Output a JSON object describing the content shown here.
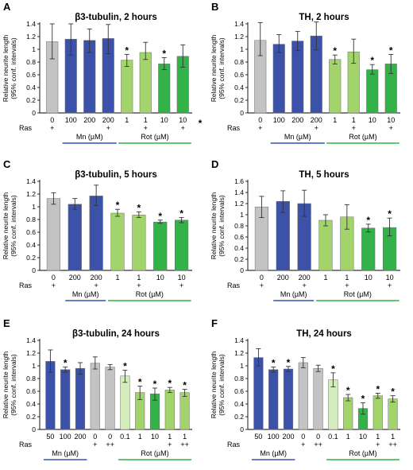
{
  "colors": {
    "control": "#c3c3c3",
    "mn": "#3c52a8",
    "rot_low": "#a3d46b",
    "rot_high": "#33b249",
    "rot_lowest": "#d5ecbc",
    "mn_line": "#3452b4",
    "rot_line": "#2fb34a"
  },
  "chart_data": [
    {
      "panel": "A",
      "type": "bar",
      "title": "β3-tubulin, 2 hours",
      "ylabel": "Relative neurite length\n(95% conf. intervals)",
      "ylim": [
        0,
        1.4
      ],
      "yticks": [
        "0",
        "0.2",
        "0.4",
        "0.6",
        "0.8",
        "1",
        "1.2",
        "1.4"
      ],
      "row_label": "Ras",
      "categories": [
        "0",
        "100",
        "200",
        "200",
        "1",
        "1",
        "10",
        "10"
      ],
      "ras": [
        "+",
        "",
        "",
        "+",
        "",
        "+",
        "",
        "+"
      ],
      "values": [
        1.12,
        1.16,
        1.14,
        1.17,
        0.83,
        0.95,
        0.77,
        0.89
      ],
      "err_low": [
        0.85,
        0.91,
        0.95,
        0.93,
        0.73,
        0.84,
        0.68,
        0.72
      ],
      "err_high": [
        1.4,
        1.4,
        1.32,
        1.39,
        0.92,
        1.11,
        0.87,
        1.07
      ],
      "fill": [
        "control",
        "mn",
        "mn",
        "mn",
        "rot_low",
        "rot_low",
        "rot_high",
        "rot_high"
      ],
      "significant": [
        false,
        false,
        false,
        false,
        true,
        false,
        true,
        false
      ],
      "groups": [
        {
          "label": "Mn  (µM)",
          "from": 1,
          "to": 3,
          "color": "mn_line"
        },
        {
          "label": "Rot (µM)",
          "from": 4,
          "to": 7,
          "color": "rot_line"
        }
      ],
      "stray_mark": "*"
    },
    {
      "panel": "B",
      "type": "bar",
      "title": "TH, 2 hours",
      "ylabel": "Relative neurite length\n(95% conf. intervals)",
      "ylim": [
        0,
        1.4
      ],
      "yticks": [
        "0",
        "0.2",
        "0.4",
        "0.6",
        "0.8",
        "1",
        "1.2",
        "1.4"
      ],
      "row_label": "Ras",
      "categories": [
        "0",
        "100",
        "200",
        "200",
        "1",
        "1",
        "10",
        "10"
      ],
      "ras": [
        "+",
        "",
        "",
        "+",
        "",
        "+",
        "",
        "+"
      ],
      "values": [
        1.14,
        1.08,
        1.13,
        1.21,
        0.84,
        0.96,
        0.68,
        0.77
      ],
      "err_low": [
        0.9,
        0.95,
        0.98,
        0.99,
        0.77,
        0.78,
        0.61,
        0.62
      ],
      "err_high": [
        1.42,
        1.23,
        1.28,
        1.43,
        0.91,
        1.16,
        0.76,
        0.92
      ],
      "fill": [
        "control",
        "mn",
        "mn",
        "mn",
        "rot_low",
        "rot_low",
        "rot_high",
        "rot_high"
      ],
      "significant": [
        false,
        false,
        false,
        false,
        true,
        false,
        true,
        true
      ],
      "groups": [
        {
          "label": "Mn  (µM)",
          "from": 1,
          "to": 3,
          "color": "mn_line"
        },
        {
          "label": "Rot (µM)",
          "from": 4,
          "to": 7,
          "color": "rot_line"
        }
      ]
    },
    {
      "panel": "C",
      "type": "bar",
      "title": "β3-tubulin, 5 hours",
      "ylabel": "Relative neurite length\n(95% conf. intervals)",
      "ylim": [
        0,
        1.4
      ],
      "yticks": [
        "0",
        "0.2",
        "0.4",
        "0.6",
        "0.8",
        "1",
        "1.2",
        "1.4"
      ],
      "row_label": "Ras",
      "categories": [
        "0",
        "200",
        "200",
        "1",
        "1",
        "10",
        "10"
      ],
      "ras": [
        "+",
        "",
        "+",
        "",
        "+",
        "",
        "+"
      ],
      "values": [
        1.13,
        1.04,
        1.17,
        0.9,
        0.87,
        0.76,
        0.79
      ],
      "err_low": [
        1.04,
        0.96,
        1.02,
        0.85,
        0.83,
        0.74,
        0.75
      ],
      "err_high": [
        1.22,
        1.13,
        1.34,
        0.96,
        0.92,
        0.79,
        0.83
      ],
      "fill": [
        "control",
        "mn",
        "mn",
        "rot_low",
        "rot_low",
        "rot_high",
        "rot_high"
      ],
      "significant": [
        false,
        false,
        false,
        true,
        true,
        true,
        true
      ],
      "groups": [
        {
          "label": "Mn (µM)",
          "from": 1,
          "to": 2,
          "color": "mn_line"
        },
        {
          "label": "Rot (µM)",
          "from": 3,
          "to": 6,
          "color": "rot_line"
        }
      ]
    },
    {
      "panel": "D",
      "type": "bar",
      "title": "TH, 5 hours",
      "ylabel": "Relative neurite length\n(95% conf. intervals)",
      "ylim": [
        0,
        1.6
      ],
      "yticks": [
        "0",
        "0.2",
        "0.4",
        "0.6",
        "0.8",
        "1",
        "1.2",
        "1.4",
        "1.6"
      ],
      "row_label": "Ras",
      "categories": [
        "0",
        "200",
        "200",
        "1",
        "1",
        "10",
        "10"
      ],
      "ras": [
        "+",
        "",
        "+",
        "",
        "+",
        "",
        "+"
      ],
      "values": [
        1.14,
        1.24,
        1.2,
        0.9,
        0.96,
        0.76,
        0.77
      ],
      "err_low": [
        0.95,
        1.04,
        0.97,
        0.8,
        0.74,
        0.69,
        0.62
      ],
      "err_high": [
        1.33,
        1.43,
        1.44,
        1.0,
        1.18,
        0.83,
        0.94
      ],
      "fill": [
        "control",
        "mn",
        "mn",
        "rot_low",
        "rot_low",
        "rot_high",
        "rot_high"
      ],
      "significant": [
        false,
        false,
        false,
        false,
        false,
        true,
        true
      ],
      "groups": [
        {
          "label": "Mn (µM)",
          "from": 1,
          "to": 2,
          "color": "mn_line"
        },
        {
          "label": "Rot (µM)",
          "from": 3,
          "to": 6,
          "color": "rot_line"
        }
      ]
    },
    {
      "panel": "E",
      "type": "bar",
      "title": "β3-tubulin, 24 hours",
      "ylabel": "Relative neurite length\n(95% conf. intervals)",
      "ylim": [
        0,
        1.4
      ],
      "yticks": [
        "0",
        "0.2",
        "0.4",
        "0.6",
        "0.8",
        "1",
        "1.2",
        "1.4"
      ],
      "row_label": "Ras",
      "categories": [
        "50",
        "100",
        "200",
        "0",
        "0",
        "0.1",
        "1",
        "10",
        "1",
        "1"
      ],
      "ras": [
        "",
        "",
        "",
        "+",
        "++",
        "",
        "",
        "",
        "+",
        "++"
      ],
      "values": [
        1.07,
        0.94,
        0.96,
        1.04,
        0.98,
        0.84,
        0.58,
        0.56,
        0.62,
        0.58
      ],
      "err_low": [
        0.9,
        0.9,
        0.87,
        0.95,
        0.94,
        0.74,
        0.47,
        0.46,
        0.58,
        0.52
      ],
      "err_high": [
        1.25,
        0.98,
        1.05,
        1.14,
        1.02,
        0.93,
        0.68,
        0.65,
        0.66,
        0.63
      ],
      "fill": [
        "mn",
        "mn",
        "mn",
        "control",
        "control",
        "rot_lowest",
        "rot_low",
        "rot_high",
        "rot_low",
        "rot_low"
      ],
      "significant": [
        false,
        true,
        false,
        false,
        false,
        true,
        true,
        true,
        true,
        true
      ],
      "groups": [
        {
          "label": "Mn (µM)",
          "from": 0,
          "to": 2,
          "color": "mn_line"
        },
        {
          "label": "Rot (µM)",
          "from": 5,
          "to": 9,
          "color": "rot_line"
        }
      ]
    },
    {
      "panel": "F",
      "type": "bar",
      "title": "TH, 24 hours",
      "ylabel": "Relative neurite length\n(95% conf. intervals)",
      "ylim": [
        0,
        1.4
      ],
      "yticks": [
        "0",
        "0.2",
        "0.4",
        "0.6",
        "0.8",
        "1",
        "1.2",
        "1.4"
      ],
      "row_label": "Ras",
      "categories": [
        "50",
        "100",
        "200",
        "0",
        "0",
        "0.1",
        "1",
        "10",
        "1",
        "1"
      ],
      "ras": [
        "",
        "",
        "",
        "+",
        "++",
        "",
        "",
        "",
        "+",
        "++"
      ],
      "values": [
        1.13,
        0.94,
        0.95,
        1.05,
        0.96,
        0.78,
        0.5,
        0.33,
        0.53,
        0.48
      ],
      "err_low": [
        1.0,
        0.9,
        0.91,
        0.97,
        0.91,
        0.67,
        0.45,
        0.24,
        0.49,
        0.43
      ],
      "err_high": [
        1.27,
        0.98,
        0.99,
        1.13,
        1.01,
        0.89,
        0.55,
        0.42,
        0.57,
        0.53
      ],
      "fill": [
        "mn",
        "mn",
        "mn",
        "control",
        "control",
        "rot_lowest",
        "rot_low",
        "rot_high",
        "rot_low",
        "rot_low"
      ],
      "significant": [
        false,
        true,
        true,
        false,
        false,
        true,
        true,
        true,
        true,
        true
      ],
      "groups": [
        {
          "label": "Mn (µM)",
          "from": 0,
          "to": 2,
          "color": "mn_line"
        },
        {
          "label": "Rot (µM)",
          "from": 5,
          "to": 9,
          "color": "rot_line"
        }
      ]
    }
  ]
}
